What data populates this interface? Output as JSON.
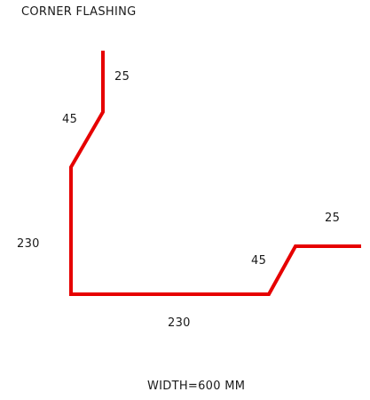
{
  "diagram": {
    "title": "CORNER FLASHING",
    "footer": "WIDTH=600 MM",
    "stroke_color": "#e60000",
    "text_color": "#1a1a1a",
    "dimensions": {
      "top_return": "25",
      "upper_bevel": "45",
      "vertical_leg": "230",
      "horizontal_leg": "230",
      "lower_bevel": "45",
      "right_return": "25"
    }
  }
}
